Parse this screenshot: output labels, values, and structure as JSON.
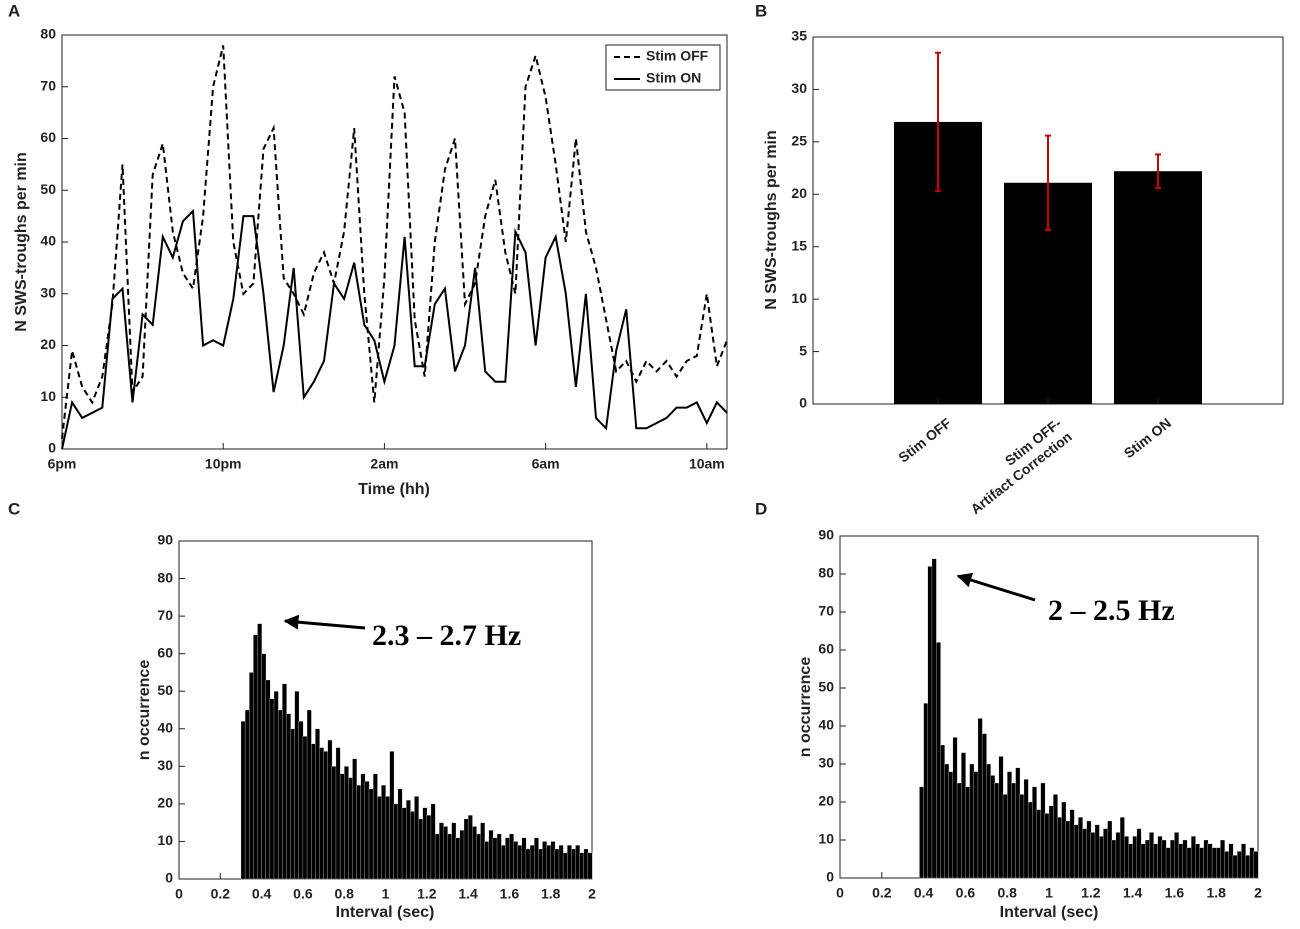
{
  "chart_data": [
    {
      "type": "line",
      "panel_label": "A",
      "xlabel": "Time (hh)",
      "ylabel": "N SWS-troughs per min",
      "x": [
        0,
        0.25,
        0.5,
        0.75,
        1,
        1.25,
        1.5,
        1.75,
        2,
        2.25,
        2.5,
        2.75,
        3,
        3.25,
        3.5,
        3.75,
        4,
        4.25,
        4.5,
        4.75,
        5,
        5.25,
        5.5,
        5.75,
        6,
        6.25,
        6.5,
        6.75,
        7,
        7.25,
        7.5,
        7.75,
        8,
        8.25,
        8.5,
        8.75,
        9,
        9.25,
        9.5,
        9.75,
        10,
        10.25,
        10.5,
        10.75,
        11,
        11.25,
        11.5,
        11.75,
        12,
        12.25,
        12.5,
        12.75,
        13,
        13.25,
        13.5,
        13.75,
        14,
        14.25,
        14.5,
        14.75,
        15,
        15.25,
        15.5,
        15.75,
        16,
        16.25,
        16.5
      ],
      "series": [
        {
          "name": "Stim OFF",
          "color": "#000000",
          "linestyle": "dashed",
          "values": [
            2,
            19,
            12,
            9,
            14,
            28,
            55,
            11,
            14,
            53,
            59,
            42,
            34,
            31,
            45,
            70,
            78,
            40,
            30,
            32,
            58,
            62,
            33,
            30,
            26,
            34,
            38,
            32,
            42,
            62,
            30,
            9,
            33,
            72,
            65,
            25,
            14,
            40,
            54,
            60,
            28,
            32,
            45,
            52,
            38,
            30,
            70,
            76,
            68,
            55,
            40,
            60,
            42,
            35,
            25,
            15,
            17,
            13,
            17,
            15,
            17,
            14,
            17,
            18,
            30,
            16,
            21
          ]
        },
        {
          "name": "Stim ON",
          "color": "#000000",
          "linestyle": "solid",
          "values": [
            0,
            9,
            6,
            7,
            8,
            29,
            31,
            9,
            26,
            24,
            41,
            37,
            44,
            46,
            20,
            21,
            20,
            29,
            45,
            45,
            30,
            11,
            20,
            35,
            10,
            13,
            17,
            32,
            29,
            36,
            24,
            21,
            13,
            20,
            41,
            16,
            16,
            28,
            31,
            15,
            20,
            35,
            15,
            13,
            13,
            42,
            38,
            20,
            37,
            41,
            30,
            12,
            30,
            6,
            4,
            19,
            27,
            4,
            4,
            5,
            6,
            8,
            8,
            9,
            5,
            9,
            7
          ]
        }
      ],
      "xlim": [
        0,
        16.5
      ],
      "xticks": [
        {
          "value": 0,
          "label": "6pm"
        },
        {
          "value": 4,
          "label": "10pm"
        },
        {
          "value": 8,
          "label": "2am"
        },
        {
          "value": 12,
          "label": "6am"
        },
        {
          "value": 16,
          "label": "10am"
        }
      ],
      "ylim": [
        0,
        80
      ],
      "yticks": [
        0,
        10,
        20,
        30,
        40,
        50,
        60,
        70,
        80
      ],
      "legend": "upper right"
    },
    {
      "type": "bar",
      "panel_label": "B",
      "ylabel": "N SWS-troughs per min",
      "categories": [
        "Stim OFF",
        "Stim OFF-\nArtifact Correction",
        "Stim ON"
      ],
      "values": [
        26.9,
        21.1,
        22.2
      ],
      "errors": [
        6.6,
        4.5,
        1.6
      ],
      "color": "#000000",
      "error_color": "#cc0000",
      "ylim": [
        0,
        35
      ],
      "yticks": [
        0,
        5,
        10,
        15,
        20,
        25,
        30,
        35
      ]
    },
    {
      "type": "histogram",
      "panel_label": "C",
      "xlabel": "Interval (sec)",
      "ylabel": "n occurrence",
      "annotation": "2.3 – 2.7 Hz",
      "color": "#000000",
      "bins": [
        0.3,
        0.32,
        0.34,
        0.36,
        0.38,
        0.4,
        0.42,
        0.44,
        0.46,
        0.48,
        0.5,
        0.52,
        0.54,
        0.56,
        0.58,
        0.6,
        0.62,
        0.64,
        0.66,
        0.68,
        0.7,
        0.72,
        0.74,
        0.76,
        0.78,
        0.8,
        0.82,
        0.84,
        0.86,
        0.88,
        0.9,
        0.92,
        0.94,
        0.96,
        0.98,
        1,
        1.02,
        1.04,
        1.06,
        1.08,
        1.1,
        1.12,
        1.14,
        1.16,
        1.18,
        1.2,
        1.22,
        1.24,
        1.26,
        1.28,
        1.3,
        1.32,
        1.34,
        1.36,
        1.38,
        1.4,
        1.42,
        1.44,
        1.46,
        1.48,
        1.5,
        1.52,
        1.54,
        1.56,
        1.58,
        1.6,
        1.62,
        1.64,
        1.66,
        1.68,
        1.7,
        1.72,
        1.74,
        1.76,
        1.78,
        1.8,
        1.82,
        1.84,
        1.86,
        1.88,
        1.9,
        1.92,
        1.94,
        1.96,
        1.98,
        2
      ],
      "counts": [
        42,
        45,
        55,
        65,
        68,
        60,
        53,
        48,
        50,
        45,
        52,
        44,
        40,
        50,
        42,
        38,
        45,
        36,
        40,
        35,
        34,
        37,
        30,
        35,
        28,
        30,
        27,
        32,
        25,
        28,
        26,
        24,
        28,
        22,
        25,
        22,
        34,
        20,
        24,
        19,
        21,
        18,
        22,
        16,
        19,
        17,
        20,
        12,
        15,
        14,
        12,
        15,
        11,
        13,
        16,
        17,
        14,
        12,
        15,
        10,
        13,
        11,
        12,
        9,
        11,
        12,
        10,
        9,
        11,
        8,
        9,
        11,
        8,
        10,
        9,
        10,
        8,
        9,
        7,
        9,
        8,
        9,
        7,
        8,
        7
      ],
      "xlim": [
        0,
        2
      ],
      "xticks": [
        0,
        0.2,
        0.4,
        0.6,
        0.8,
        1,
        1.2,
        1.4,
        1.6,
        1.8,
        2
      ],
      "ylim": [
        0,
        90
      ],
      "yticks": [
        0,
        10,
        20,
        30,
        40,
        50,
        60,
        70,
        80,
        90
      ]
    },
    {
      "type": "histogram",
      "panel_label": "D",
      "xlabel": "Interval (sec)",
      "ylabel": "n occurrence",
      "annotation": "2 – 2.5 Hz",
      "color": "#000000",
      "bins": [
        0.38,
        0.4,
        0.42,
        0.44,
        0.46,
        0.48,
        0.5,
        0.52,
        0.54,
        0.56,
        0.58,
        0.6,
        0.62,
        0.64,
        0.66,
        0.68,
        0.7,
        0.72,
        0.74,
        0.76,
        0.78,
        0.8,
        0.82,
        0.84,
        0.86,
        0.88,
        0.9,
        0.92,
        0.94,
        0.96,
        0.98,
        1,
        1.02,
        1.04,
        1.06,
        1.08,
        1.1,
        1.12,
        1.14,
        1.16,
        1.18,
        1.2,
        1.22,
        1.24,
        1.26,
        1.28,
        1.3,
        1.32,
        1.34,
        1.36,
        1.38,
        1.4,
        1.42,
        1.44,
        1.46,
        1.48,
        1.5,
        1.52,
        1.54,
        1.56,
        1.58,
        1.6,
        1.62,
        1.64,
        1.66,
        1.68,
        1.7,
        1.72,
        1.74,
        1.76,
        1.78,
        1.8,
        1.82,
        1.84,
        1.86,
        1.88,
        1.9,
        1.92,
        1.94,
        1.96,
        1.98,
        2
      ],
      "counts": [
        24,
        46,
        82,
        84,
        62,
        35,
        30,
        28,
        37,
        25,
        33,
        24,
        30,
        28,
        42,
        38,
        30,
        27,
        25,
        32,
        22,
        28,
        25,
        29,
        22,
        26,
        20,
        24,
        18,
        25,
        17,
        19,
        22,
        16,
        20,
        15,
        18,
        14,
        16,
        13,
        15,
        12,
        14,
        11,
        13,
        15,
        10,
        12,
        16,
        11,
        9,
        11,
        13,
        9,
        10,
        12,
        9,
        11,
        10,
        8,
        10,
        12,
        9,
        10,
        8,
        11,
        9,
        8,
        10,
        9,
        8,
        8,
        10,
        7,
        9,
        6,
        7,
        9,
        6,
        8,
        7
      ],
      "xlim": [
        0,
        2
      ],
      "xticks": [
        0,
        0.2,
        0.4,
        0.6,
        0.8,
        1,
        1.2,
        1.4,
        1.6,
        1.8,
        2
      ],
      "ylim": [
        0,
        90
      ],
      "yticks": [
        0,
        10,
        20,
        30,
        40,
        50,
        60,
        70,
        80,
        90
      ]
    }
  ]
}
